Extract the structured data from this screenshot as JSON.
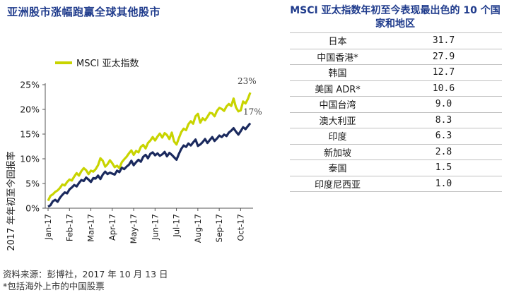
{
  "left_title": "亚洲股市涨幅跑赢全球其他股市",
  "right_title": "MSCI 亚太指数年初至今表现最出色的 10 个国家和地区",
  "chart_data": {
    "type": "line",
    "title": "",
    "ylabel": "2017 年年初至今回报率",
    "xlabel": "",
    "ylim": [
      0,
      25
    ],
    "y_ticks": [
      "0%",
      "5%",
      "10%",
      "15%",
      "20%",
      "25%"
    ],
    "x_ticks": [
      "Jan-17",
      "Feb-17",
      "Mar-17",
      "Apr-17",
      "May-17",
      "Jun-17",
      "Jul-17",
      "Aug-17",
      "Sep-17",
      "Oct-17"
    ],
    "legend_placement": "top-left",
    "grid": false,
    "series": [
      {
        "name": "MSCI 亚太指数",
        "color": "#c8d400",
        "end_label": "23%",
        "values": [
          1.5,
          2.5,
          2.8,
          3.3,
          3.6,
          4.1,
          4.8,
          4.6,
          5.3,
          5.8,
          5.6,
          6.4,
          7.1,
          6.6,
          7.5,
          8.1,
          7.7,
          6.9,
          7.6,
          7.4,
          7.9,
          8.7,
          10.1,
          9.6,
          8.4,
          8.9,
          9.7,
          9.1,
          8.3,
          8.6,
          8.1,
          9.3,
          9.9,
          10.4,
          11.1,
          11.7,
          10.8,
          11.6,
          11.3,
          12.4,
          12.8,
          12.1,
          13.2,
          13.7,
          14.4,
          13.7,
          14.5,
          15.1,
          14.3,
          15.2,
          14.8,
          14.0,
          15.3,
          13.5,
          12.9,
          14.2,
          15.4,
          16.1,
          15.8,
          17.0,
          17.6,
          17.1,
          18.6,
          19.1,
          17.3,
          18.2,
          17.8,
          18.5,
          19.3,
          19.2,
          18.6,
          19.7,
          20.3,
          20.1,
          19.7,
          20.6,
          21.1,
          20.7,
          22.2,
          20.4,
          19.6,
          19.8,
          21.6,
          21.2,
          22.1,
          23.4
        ]
      },
      {
        "name": "",
        "color": "#1b2a5e",
        "end_label": "17%",
        "values": [
          0.3,
          0.6,
          1.4,
          1.7,
          1.3,
          2.1,
          2.7,
          3.2,
          3.0,
          3.8,
          4.2,
          4.7,
          4.4,
          5.1,
          5.7,
          5.5,
          6.2,
          5.8,
          5.3,
          6.1,
          6.0,
          6.6,
          5.9,
          6.8,
          7.4,
          6.9,
          7.2,
          7.0,
          6.8,
          7.6,
          7.3,
          8.2,
          7.9,
          8.4,
          8.8,
          9.6,
          8.7,
          9.3,
          9.8,
          9.4,
          10.4,
          10.8,
          10.1,
          11.0,
          11.3,
          10.7,
          11.1,
          10.6,
          10.9,
          11.4,
          10.5,
          11.2,
          10.8,
          10.3,
          9.8,
          11.0,
          12.0,
          12.7,
          12.4,
          13.1,
          12.7,
          13.3,
          13.9,
          12.6,
          12.9,
          13.4,
          14.0,
          13.2,
          13.8,
          14.4,
          13.6,
          14.1,
          14.7,
          14.4,
          14.9,
          14.6,
          15.3,
          15.7,
          16.2,
          15.5,
          14.9,
          15.6,
          16.4,
          16.0,
          16.6,
          17.2
        ]
      }
    ]
  },
  "table": {
    "rows": [
      {
        "name": "日本",
        "value": "31.7"
      },
      {
        "name": "中国香港*",
        "value": "27.9"
      },
      {
        "name": "韩国",
        "value": "12.7"
      },
      {
        "name": "美国 ADR*",
        "value": "10.6"
      },
      {
        "name": "中国台湾",
        "value": "9.0"
      },
      {
        "name": "澳大利亚",
        "value": "8.3"
      },
      {
        "name": "印度",
        "value": "6.3"
      },
      {
        "name": "新加坡",
        "value": "2.8"
      },
      {
        "name": "泰国",
        "value": "1.5"
      },
      {
        "name": "印度尼西亚",
        "value": "1.0"
      }
    ]
  },
  "footer": {
    "source": "资料来源：彭博社，2017 年 10 月 13 日",
    "note": "*包括海外上市的中国股票"
  }
}
